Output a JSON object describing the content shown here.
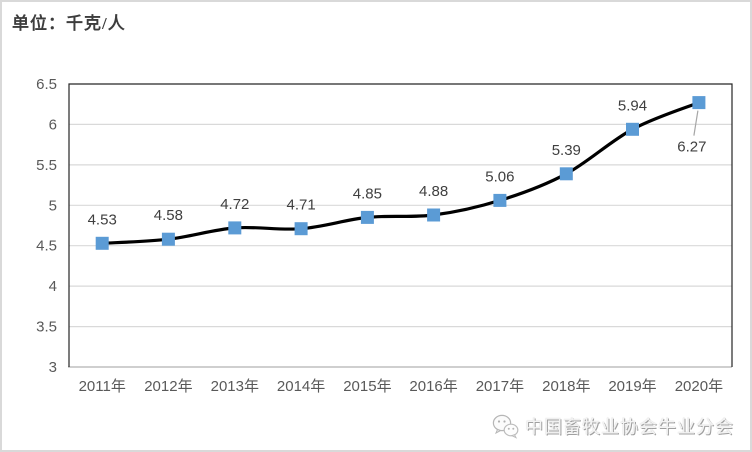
{
  "title": "单位：千克/人",
  "chart_data": {
    "type": "line",
    "title": "单位：千克/人",
    "categories": [
      "2011年",
      "2012年",
      "2013年",
      "2014年",
      "2015年",
      "2016年",
      "2017年",
      "2018年",
      "2019年",
      "2020年"
    ],
    "values": [
      4.53,
      4.58,
      4.72,
      4.71,
      4.85,
      4.88,
      5.06,
      5.39,
      5.94,
      6.27
    ],
    "data_labels": [
      "4.53",
      "4.58",
      "4.72",
      "4.71",
      "4.85",
      "4.88",
      "5.06",
      "5.39",
      "5.94",
      "6.27"
    ],
    "label_placement": [
      "above",
      "above",
      "above",
      "above",
      "above",
      "above",
      "above",
      "above",
      "above",
      "below-leader"
    ],
    "xlabel": "",
    "ylabel": "",
    "ylim": [
      3,
      6.5
    ],
    "yticks": [
      "3",
      "3.5",
      "4",
      "4.5",
      "5",
      "5.5",
      "6",
      "6.5"
    ],
    "grid": "horizontal",
    "legend": "none",
    "smoothed": true,
    "line_color": "#000000",
    "marker": {
      "shape": "square",
      "color": "#5B9BD5",
      "size": 13
    },
    "colors": {
      "gridline": "#D9D9D9",
      "axis": "#BFBFBF",
      "plot_border": "#262626",
      "tick_label": "#595959",
      "data_label": "#3F3F3F",
      "leader_line": "#A6A6A6"
    }
  },
  "footer": {
    "icon": "wechat-icon",
    "text": "中国畜牧业协会牛业分会"
  }
}
